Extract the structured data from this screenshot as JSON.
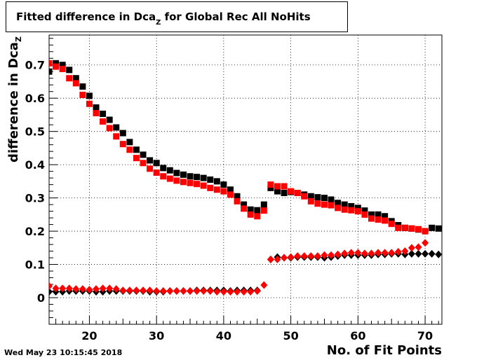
{
  "chart_data": {
    "type": "scatter",
    "title_main": "Fitted difference in Dca",
    "title_sub": "Z",
    "title_rest": " for Global Rec All NoHits",
    "xlabel": "No. of Fit Points",
    "ylabel_main": "difference in Dca",
    "ylabel_sub": "Z",
    "xlim": [
      14,
      72.5
    ],
    "ylim": [
      -0.08,
      0.79
    ],
    "xticks": [
      20,
      30,
      40,
      50,
      60,
      70
    ],
    "yticks": [
      0,
      0.1,
      0.2,
      0.3,
      0.4,
      0.5,
      0.6,
      0.7
    ],
    "ytick_labels": [
      "0",
      "0.1",
      "0.2",
      "0.3",
      "0.4",
      "0.5",
      "0.6",
      "0.7"
    ],
    "grid": true,
    "series": [
      {
        "marker": "square",
        "color": "#000000",
        "x": [
          14,
          15,
          16,
          17,
          18,
          19,
          20,
          21,
          22,
          23,
          24,
          25,
          26,
          27,
          28,
          29,
          30,
          31,
          32,
          33,
          34,
          35,
          36,
          37,
          38,
          39,
          40,
          41,
          42,
          43,
          44,
          45,
          46,
          47,
          48,
          49,
          50,
          51,
          52,
          53,
          54,
          55,
          56,
          57,
          58,
          59,
          60,
          61,
          62,
          63,
          64,
          65,
          66,
          67,
          68,
          69,
          70,
          71,
          72
        ],
        "y": [
          0.68,
          0.705,
          0.7,
          0.685,
          0.66,
          0.635,
          0.607,
          0.572,
          0.553,
          0.535,
          0.512,
          0.495,
          0.468,
          0.445,
          0.43,
          0.413,
          0.405,
          0.39,
          0.383,
          0.375,
          0.37,
          0.365,
          0.363,
          0.36,
          0.355,
          0.35,
          0.34,
          0.325,
          0.305,
          0.28,
          0.265,
          0.263,
          0.28,
          0.33,
          0.32,
          0.315,
          0.318,
          0.315,
          0.31,
          0.305,
          0.302,
          0.3,
          0.295,
          0.285,
          0.28,
          0.275,
          0.27,
          0.262,
          0.25,
          0.25,
          0.245,
          0.23,
          0.218,
          0.21,
          0.208,
          0.205,
          0.2,
          0.21,
          0.208
        ]
      },
      {
        "marker": "square",
        "color": "#ff0000",
        "x": [
          14,
          15,
          16,
          17,
          18,
          19,
          20,
          21,
          22,
          23,
          24,
          25,
          26,
          27,
          28,
          29,
          30,
          31,
          32,
          33,
          34,
          35,
          36,
          37,
          38,
          39,
          40,
          41,
          42,
          43,
          44,
          45,
          46,
          47,
          48,
          49,
          50,
          51,
          52,
          53,
          54,
          55,
          56,
          57,
          58,
          59,
          60,
          61,
          62,
          63,
          64,
          65,
          66,
          67,
          68,
          69,
          70
        ],
        "y": [
          0.705,
          0.695,
          0.688,
          0.66,
          0.645,
          0.61,
          0.583,
          0.555,
          0.53,
          0.51,
          0.485,
          0.462,
          0.445,
          0.42,
          0.405,
          0.388,
          0.376,
          0.365,
          0.358,
          0.352,
          0.348,
          0.345,
          0.342,
          0.337,
          0.33,
          0.325,
          0.32,
          0.31,
          0.29,
          0.268,
          0.25,
          0.245,
          0.262,
          0.34,
          0.335,
          0.335,
          0.32,
          0.315,
          0.305,
          0.29,
          0.283,
          0.28,
          0.278,
          0.27,
          0.265,
          0.263,
          0.26,
          0.25,
          0.238,
          0.235,
          0.232,
          0.222,
          0.21,
          0.21,
          0.208,
          0.206,
          0.2
        ]
      },
      {
        "marker": "diamond",
        "color": "#000000",
        "x": [
          14,
          15,
          16,
          17,
          18,
          19,
          20,
          21,
          22,
          23,
          24,
          25,
          26,
          27,
          28,
          29,
          30,
          31,
          32,
          33,
          34,
          35,
          36,
          37,
          38,
          39,
          40,
          41,
          42,
          43,
          44,
          45,
          47,
          48,
          49,
          50,
          51,
          52,
          53,
          54,
          55,
          56,
          57,
          58,
          59,
          60,
          61,
          62,
          63,
          64,
          65,
          66,
          67,
          68,
          69,
          70,
          71,
          72
        ],
        "y": [
          0.018,
          0.018,
          0.018,
          0.02,
          0.02,
          0.02,
          0.02,
          0.018,
          0.018,
          0.02,
          0.02,
          0.02,
          0.02,
          0.02,
          0.02,
          0.018,
          0.018,
          0.018,
          0.02,
          0.02,
          0.02,
          0.02,
          0.022,
          0.022,
          0.022,
          0.022,
          0.022,
          0.02,
          0.022,
          0.022,
          0.022,
          0.022,
          0.115,
          0.122,
          0.12,
          0.12,
          0.122,
          0.122,
          0.122,
          0.122,
          0.12,
          0.122,
          0.125,
          0.128,
          0.128,
          0.128,
          0.128,
          0.128,
          0.13,
          0.13,
          0.132,
          0.132,
          0.13,
          0.132,
          0.132,
          0.132,
          0.132,
          0.13
        ]
      },
      {
        "marker": "diamond",
        "color": "#ff0000",
        "x": [
          14,
          15,
          16,
          17,
          18,
          19,
          20,
          21,
          22,
          23,
          24,
          25,
          26,
          27,
          28,
          29,
          30,
          31,
          32,
          33,
          34,
          35,
          36,
          37,
          38,
          39,
          40,
          41,
          42,
          43,
          44,
          45,
          46,
          47,
          48,
          49,
          50,
          51,
          52,
          53,
          54,
          55,
          56,
          57,
          58,
          59,
          60,
          61,
          62,
          63,
          64,
          65,
          66,
          67,
          68,
          69,
          70
        ],
        "y": [
          0.035,
          0.028,
          0.028,
          0.028,
          0.026,
          0.026,
          0.024,
          0.026,
          0.028,
          0.028,
          0.026,
          0.022,
          0.022,
          0.022,
          0.022,
          0.022,
          0.02,
          0.02,
          0.02,
          0.02,
          0.02,
          0.02,
          0.02,
          0.02,
          0.02,
          0.018,
          0.018,
          0.018,
          0.018,
          0.018,
          0.018,
          0.02,
          0.038,
          0.115,
          0.115,
          0.12,
          0.122,
          0.125,
          0.125,
          0.125,
          0.125,
          0.128,
          0.128,
          0.13,
          0.133,
          0.135,
          0.135,
          0.133,
          0.133,
          0.135,
          0.135,
          0.135,
          0.138,
          0.14,
          0.15,
          0.152,
          0.165
        ]
      }
    ]
  },
  "footer": {
    "timestamp": "Wed May 23 10:15:45 2018"
  }
}
